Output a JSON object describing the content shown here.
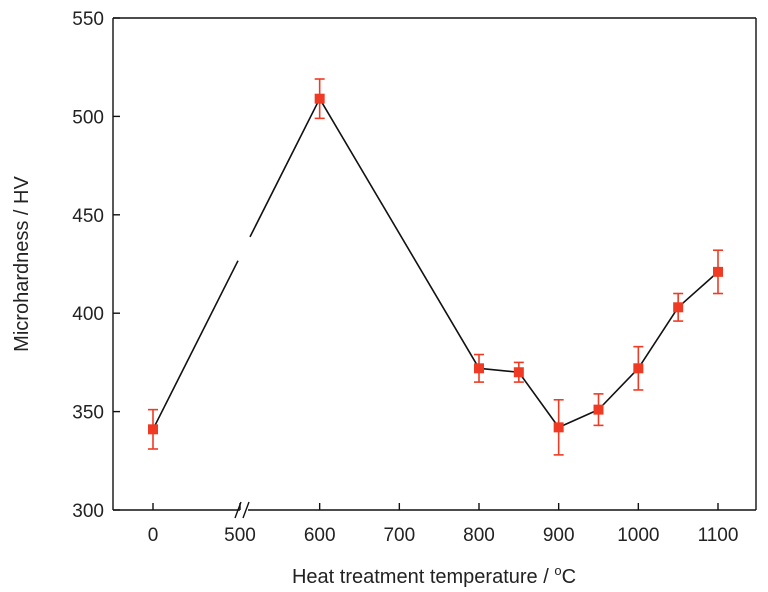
{
  "chart_data": {
    "type": "line",
    "title": "",
    "xlabel": "Heat treatment temperature / ",
    "xlabel_unit_sup": "o",
    "xlabel_unit": "C",
    "ylabel": "Microhardness / HV",
    "ylim": [
      300,
      550
    ],
    "yticks": [
      300,
      350,
      400,
      450,
      500,
      550
    ],
    "xticks": [
      0,
      500,
      600,
      700,
      800,
      900,
      1000,
      1100
    ],
    "x_axis_break": "between 0 and 500",
    "x": [
      0,
      600,
      800,
      850,
      900,
      950,
      1000,
      1050,
      1100
    ],
    "values": [
      341,
      509,
      372,
      370,
      342,
      351,
      372,
      403,
      421
    ],
    "error": [
      10,
      10,
      7,
      5,
      14,
      8,
      11,
      7,
      11
    ],
    "marker": "square",
    "colors": {
      "marker": "#ef3b24",
      "line": "#111111",
      "axis": "#111111"
    },
    "grid": false,
    "legend": "none"
  }
}
